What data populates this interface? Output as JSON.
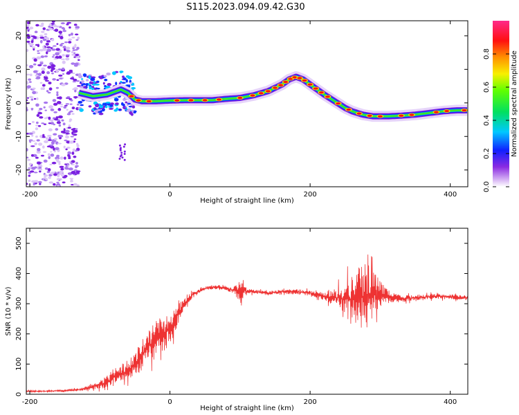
{
  "title": "S115.2023.094.09.42.G30",
  "chart_data": [
    {
      "type": "heatmap",
      "xlabel": "Height of straight line (km)",
      "ylabel": "Frequency (Hz)",
      "xlim": [
        -205,
        425
      ],
      "ylim": [
        -25,
        24.5
      ],
      "xticks": [
        -200,
        0,
        200,
        400
      ],
      "yticks": [
        -20,
        -10,
        0,
        10,
        20
      ],
      "colorbar": {
        "label": "Normalized spectral amplitude",
        "range": [
          0.0,
          1.0
        ],
        "ticks": [
          "0.0",
          "0.2",
          "0.4",
          "0.6",
          "0.8"
        ],
        "tick_values": [
          0.0,
          0.2,
          0.4,
          0.6,
          0.8
        ],
        "colormap": "rainbow (white → purple → blue → cyan → green → yellow → red → magenta)"
      },
      "ridge": {
        "x": [
          -130,
          -110,
          -90,
          -70,
          -60,
          -50,
          -40,
          -20,
          0,
          20,
          40,
          60,
          80,
          100,
          120,
          140,
          160,
          170,
          180,
          190,
          200,
          210,
          220,
          235,
          250,
          260,
          275,
          290,
          310,
          330,
          350,
          370,
          390,
          410,
          425
        ],
        "y": [
          3,
          2,
          2.5,
          4,
          3,
          1,
          0.5,
          0.5,
          0.7,
          0.8,
          0.8,
          0.8,
          1.2,
          1.5,
          2.3,
          3.5,
          5.5,
          7,
          7.8,
          7,
          5.5,
          4,
          2.5,
          0.5,
          -1.5,
          -2.5,
          -3.5,
          -4,
          -4,
          -3.8,
          -3.5,
          -3,
          -2.5,
          -2.2,
          -2.2
        ]
      },
      "noise_region": {
        "x_from": -205,
        "x_to": -130,
        "y_from": -25,
        "y_to": 24.5
      },
      "stray_feature": {
        "x_from": -72,
        "x_to": -64,
        "y_from": -17,
        "y_to": -12
      }
    },
    {
      "type": "line",
      "xlabel": "Height of straight line (km)",
      "ylabel": "SNR (10 * v/v)",
      "xlim": [
        -205,
        425
      ],
      "ylim": [
        0,
        550
      ],
      "xticks": [
        -200,
        0,
        200,
        400
      ],
      "yticks": [
        0,
        100,
        200,
        300,
        400,
        500
      ],
      "series": [
        {
          "color": "#ee3333",
          "x": [
            -205,
            -180,
            -150,
            -130,
            -110,
            -90,
            -80,
            -70,
            -60,
            -50,
            -40,
            -30,
            -20,
            -10,
            0,
            10,
            20,
            30,
            40,
            50,
            60,
            70,
            80,
            90,
            100,
            105,
            110,
            120,
            140,
            160,
            180,
            200,
            220,
            240,
            250,
            260,
            270,
            280,
            290,
            300,
            310,
            320,
            330,
            350,
            380,
            425
          ],
          "mean": [
            10,
            10,
            12,
            15,
            25,
            40,
            55,
            65,
            80,
            100,
            130,
            160,
            180,
            200,
            215,
            260,
            300,
            325,
            340,
            350,
            355,
            355,
            350,
            345,
            340,
            345,
            340,
            340,
            335,
            340,
            340,
            335,
            325,
            320,
            315,
            315,
            320,
            330,
            340,
            330,
            325,
            320,
            315,
            320,
            325,
            320
          ],
          "spread": [
            5,
            5,
            5,
            8,
            15,
            35,
            30,
            45,
            60,
            70,
            80,
            100,
            110,
            100,
            90,
            60,
            30,
            20,
            15,
            12,
            12,
            12,
            12,
            15,
            60,
            50,
            15,
            12,
            12,
            12,
            15,
            15,
            20,
            60,
            100,
            130,
            170,
            200,
            130,
            80,
            40,
            25,
            20,
            15,
            15,
            15
          ]
        }
      ]
    }
  ]
}
